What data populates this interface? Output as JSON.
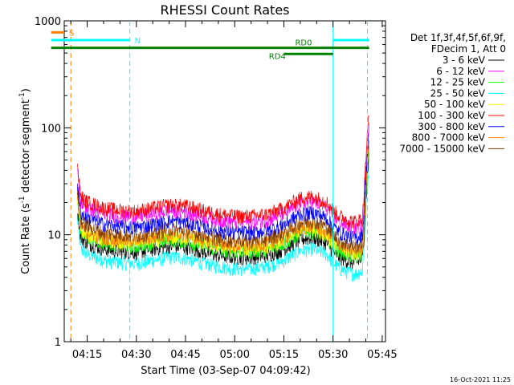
{
  "chart_data": {
    "type": "line",
    "title": "RHESSI Count Rates",
    "xlabel": "Start Time (03-Sep-07 04:09:42)",
    "ylabel_prefix": "Count Rate (s",
    "ylabel_sup": "-1",
    "ylabel_mid": " detector segment",
    "ylabel_sup2": "-1",
    "ylabel_suffix": ")",
    "y_scale": "log",
    "ylim": [
      1,
      1000
    ],
    "xlim_minutes": [
      4.0,
      101.0
    ],
    "x_tick_labels": [
      "04:15",
      "04:30",
      "04:45",
      "05:00",
      "05:15",
      "05:30",
      "05:45"
    ],
    "x_tick_minutes": [
      15,
      30,
      45,
      60,
      75,
      90,
      105
    ],
    "y_tick_labels": [
      "1",
      "10",
      "100",
      "1000"
    ],
    "y_tick_values": [
      1,
      10,
      100,
      1000
    ],
    "legend_header_1": "Det 1f,3f,4f,5f,6f,9f,",
    "legend_header_2": "FDecim 1, Att 0",
    "legend_placement": "right",
    "series": [
      {
        "name": "3 - 6 keV",
        "color": "#000000",
        "base": 7.0,
        "spike": 110
      },
      {
        "name": "6 - 12 keV",
        "color": "#ff00ff",
        "base": 15.0,
        "spike": 150
      },
      {
        "name": "12 - 25 keV",
        "color": "#00ff00",
        "base": 8.0,
        "spike": 90
      },
      {
        "name": "25 - 50 keV",
        "color": "#00ffff",
        "base": 5.5,
        "spike": 60
      },
      {
        "name": "50 - 100 keV",
        "color": "#ffff00",
        "base": 8.5,
        "spike": 70
      },
      {
        "name": "100 - 300 keV",
        "color": "#ff0000",
        "base": 17.0,
        "spike": 120
      },
      {
        "name": "300 - 800 keV",
        "color": "#0000ff",
        "base": 12.0,
        "spike": 100
      },
      {
        "name": "800 - 7000 keV",
        "color": "#ff8000",
        "base": 9.0,
        "spike": 80
      },
      {
        "name": "7000 - 15000 keV",
        "color": "#804000",
        "base": 10.0,
        "spike": 95
      }
    ],
    "shape_x_minutes": [
      12,
      13,
      15,
      20,
      25,
      30,
      35,
      40,
      45,
      50,
      55,
      60,
      65,
      70,
      75,
      80,
      84,
      88,
      90,
      92,
      95,
      97,
      99,
      100,
      101
    ],
    "shape_factor": [
      2.6,
      1.35,
      1.2,
      1.05,
      1.0,
      0.98,
      1.05,
      1.12,
      1.1,
      1.0,
      0.92,
      0.88,
      0.88,
      0.92,
      1.05,
      1.3,
      1.35,
      1.2,
      1.0,
      0.88,
      0.8,
      0.78,
      0.85,
      3.0,
      9.0
    ],
    "annotations": {
      "saa": {
        "label": "S",
        "start_minutes": 4.0,
        "end_minutes": 8.0,
        "line_minutes": 10.0,
        "level": 780,
        "color": "#ff8000"
      },
      "night": {
        "label": "N",
        "color": "#00ffff",
        "level": 660,
        "spans": [
          [
            4.0,
            28.0
          ],
          [
            90.0,
            101.0
          ]
        ],
        "lines": [
          28.0,
          100.5
        ],
        "solid_line": 90.0
      },
      "rd0": {
        "label": "RD0",
        "color": "#008000",
        "level": 560,
        "spans": [
          [
            4.0,
            101.0
          ]
        ]
      },
      "rd4": {
        "label": "RD4",
        "color": "#008000",
        "level": 490,
        "spans": [
          [
            75.0,
            90.0
          ]
        ]
      }
    },
    "footer_date": "16-Oct-2021 11:25"
  }
}
